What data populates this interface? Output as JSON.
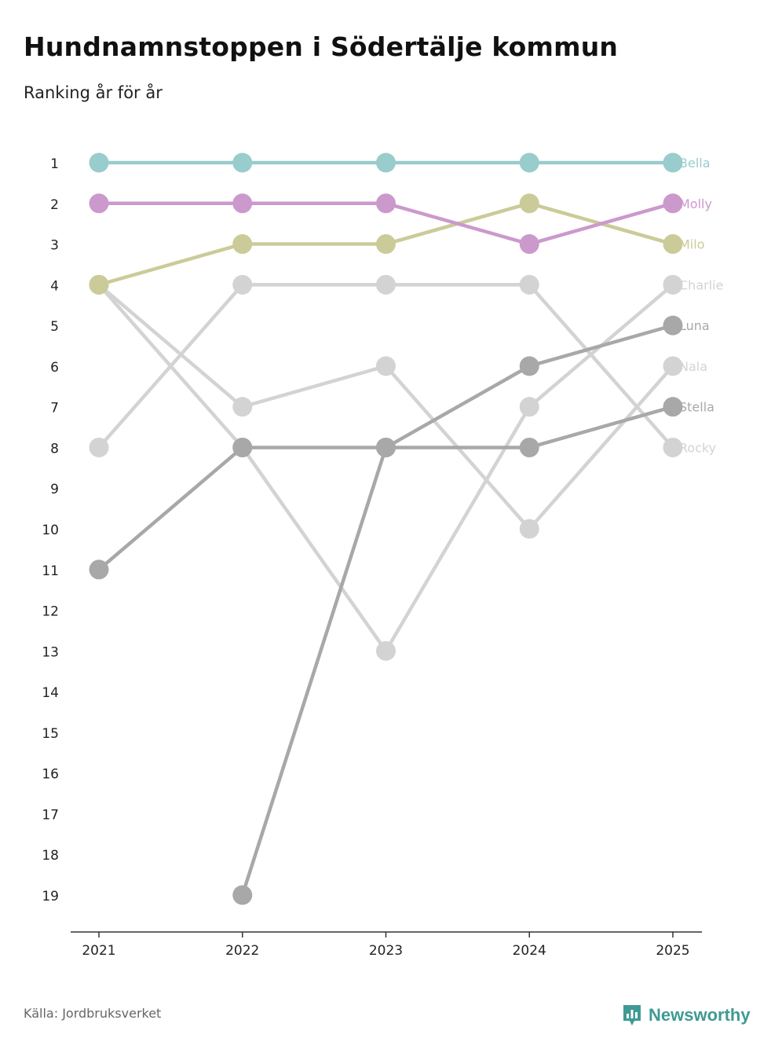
{
  "header": {
    "title": "Hundnamnstoppen i Södertälje kommun",
    "subtitle": "Ranking år för år"
  },
  "footer": {
    "source": "Källa: Jordbruksverket",
    "brand": "Newsworthy",
    "brand_icon": "newsworthy-logo-icon"
  },
  "chart_data": {
    "type": "line",
    "title": "Hundnamnstoppen i Södertälje kommun",
    "subtitle": "Ranking år för år",
    "xlabel": "",
    "ylabel": "",
    "x": [
      "2021",
      "2022",
      "2023",
      "2024",
      "2025"
    ],
    "y_ticks": [
      "1",
      "2",
      "3",
      "4",
      "5",
      "6",
      "7",
      "8",
      "9",
      "10",
      "11",
      "12",
      "13",
      "14",
      "15",
      "16",
      "17",
      "18",
      "19"
    ],
    "ylim": [
      1,
      19
    ],
    "y_inverted": true,
    "grid": false,
    "series": [
      {
        "name": "Rocky",
        "color": "#d3d3d3",
        "values": [
          8,
          4,
          4,
          4,
          8
        ]
      },
      {
        "name": "Nala",
        "color": "#d3d3d3",
        "values": [
          4,
          7,
          6,
          10,
          6
        ]
      },
      {
        "name": "Charlie",
        "color": "#d3d3d3",
        "values": [
          4,
          8,
          13,
          7,
          4
        ]
      },
      {
        "name": "Stella",
        "color": "#a8a8a8",
        "values": [
          11,
          8,
          8,
          8,
          7
        ]
      },
      {
        "name": "Luna",
        "color": "#a8a8a8",
        "values": [
          null,
          19,
          8,
          6,
          5
        ]
      },
      {
        "name": "Milo",
        "color": "#cbcb99",
        "values": [
          4,
          3,
          3,
          2,
          3
        ]
      },
      {
        "name": "Molly",
        "color": "#cc99cc",
        "values": [
          2,
          2,
          2,
          3,
          2
        ]
      },
      {
        "name": "Bella",
        "color": "#99cccc",
        "values": [
          1,
          1,
          1,
          1,
          1
        ]
      }
    ]
  }
}
